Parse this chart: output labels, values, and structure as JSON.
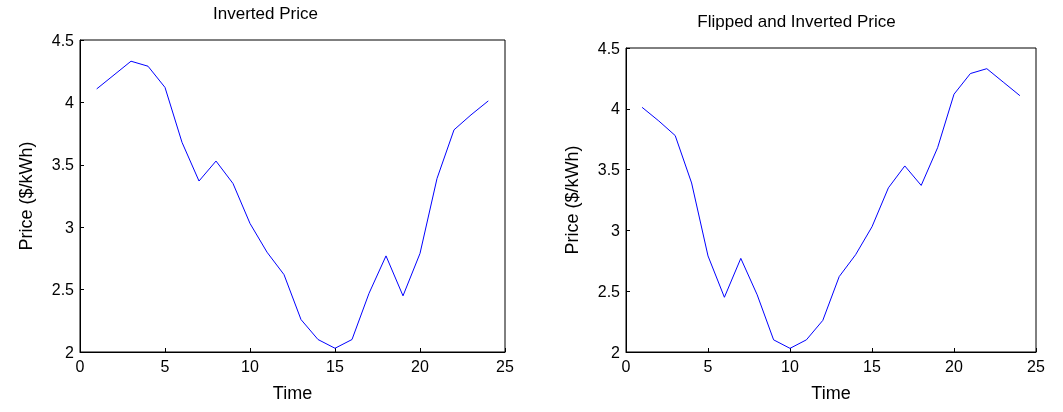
{
  "chart_data": [
    {
      "type": "line",
      "title": "Inverted Price",
      "xlabel": "Time",
      "ylabel": "Price ($/kWh)",
      "x": [
        1,
        2,
        3,
        4,
        5,
        6,
        7,
        8,
        9,
        10,
        11,
        12,
        13,
        14,
        15,
        16,
        17,
        18,
        19,
        20,
        21,
        22,
        23,
        24
      ],
      "series": [
        {
          "color": "#0000ff",
          "values": [
            4.11,
            4.22,
            4.33,
            4.29,
            4.12,
            3.68,
            3.37,
            3.53,
            3.35,
            3.03,
            2.8,
            2.62,
            2.26,
            2.1,
            2.03,
            2.1,
            2.47,
            2.77,
            2.45,
            2.79,
            3.39,
            3.78,
            3.9,
            4.01
          ]
        }
      ],
      "xlim": [
        0,
        25
      ],
      "xticks": [
        0,
        5,
        10,
        15,
        20,
        25
      ],
      "ylim": [
        2,
        4.5
      ],
      "yticks": [
        2,
        2.5,
        3,
        3.5,
        4,
        4.5
      ],
      "grid": false,
      "marker": "none",
      "line_style": "solid"
    },
    {
      "type": "line",
      "title": "Flipped and Inverted Price",
      "xlabel": "Time",
      "ylabel": "Price ($/kWh)",
      "x": [
        1,
        2,
        3,
        4,
        5,
        6,
        7,
        8,
        9,
        10,
        11,
        12,
        13,
        14,
        15,
        16,
        17,
        18,
        19,
        20,
        21,
        22,
        23,
        24
      ],
      "series": [
        {
          "color": "#0000ff",
          "values": [
            4.01,
            3.9,
            3.78,
            3.39,
            2.79,
            2.45,
            2.77,
            2.47,
            2.1,
            2.03,
            2.1,
            2.26,
            2.62,
            2.8,
            3.03,
            3.35,
            3.53,
            3.37,
            3.68,
            4.12,
            4.29,
            4.33,
            4.22,
            4.11
          ]
        }
      ],
      "xlim": [
        0,
        25
      ],
      "xticks": [
        0,
        5,
        10,
        15,
        20,
        25
      ],
      "ylim": [
        2,
        4.5
      ],
      "yticks": [
        2,
        2.5,
        3,
        3.5,
        4,
        4.5
      ],
      "grid": false,
      "marker": "none",
      "line_style": "solid"
    }
  ]
}
